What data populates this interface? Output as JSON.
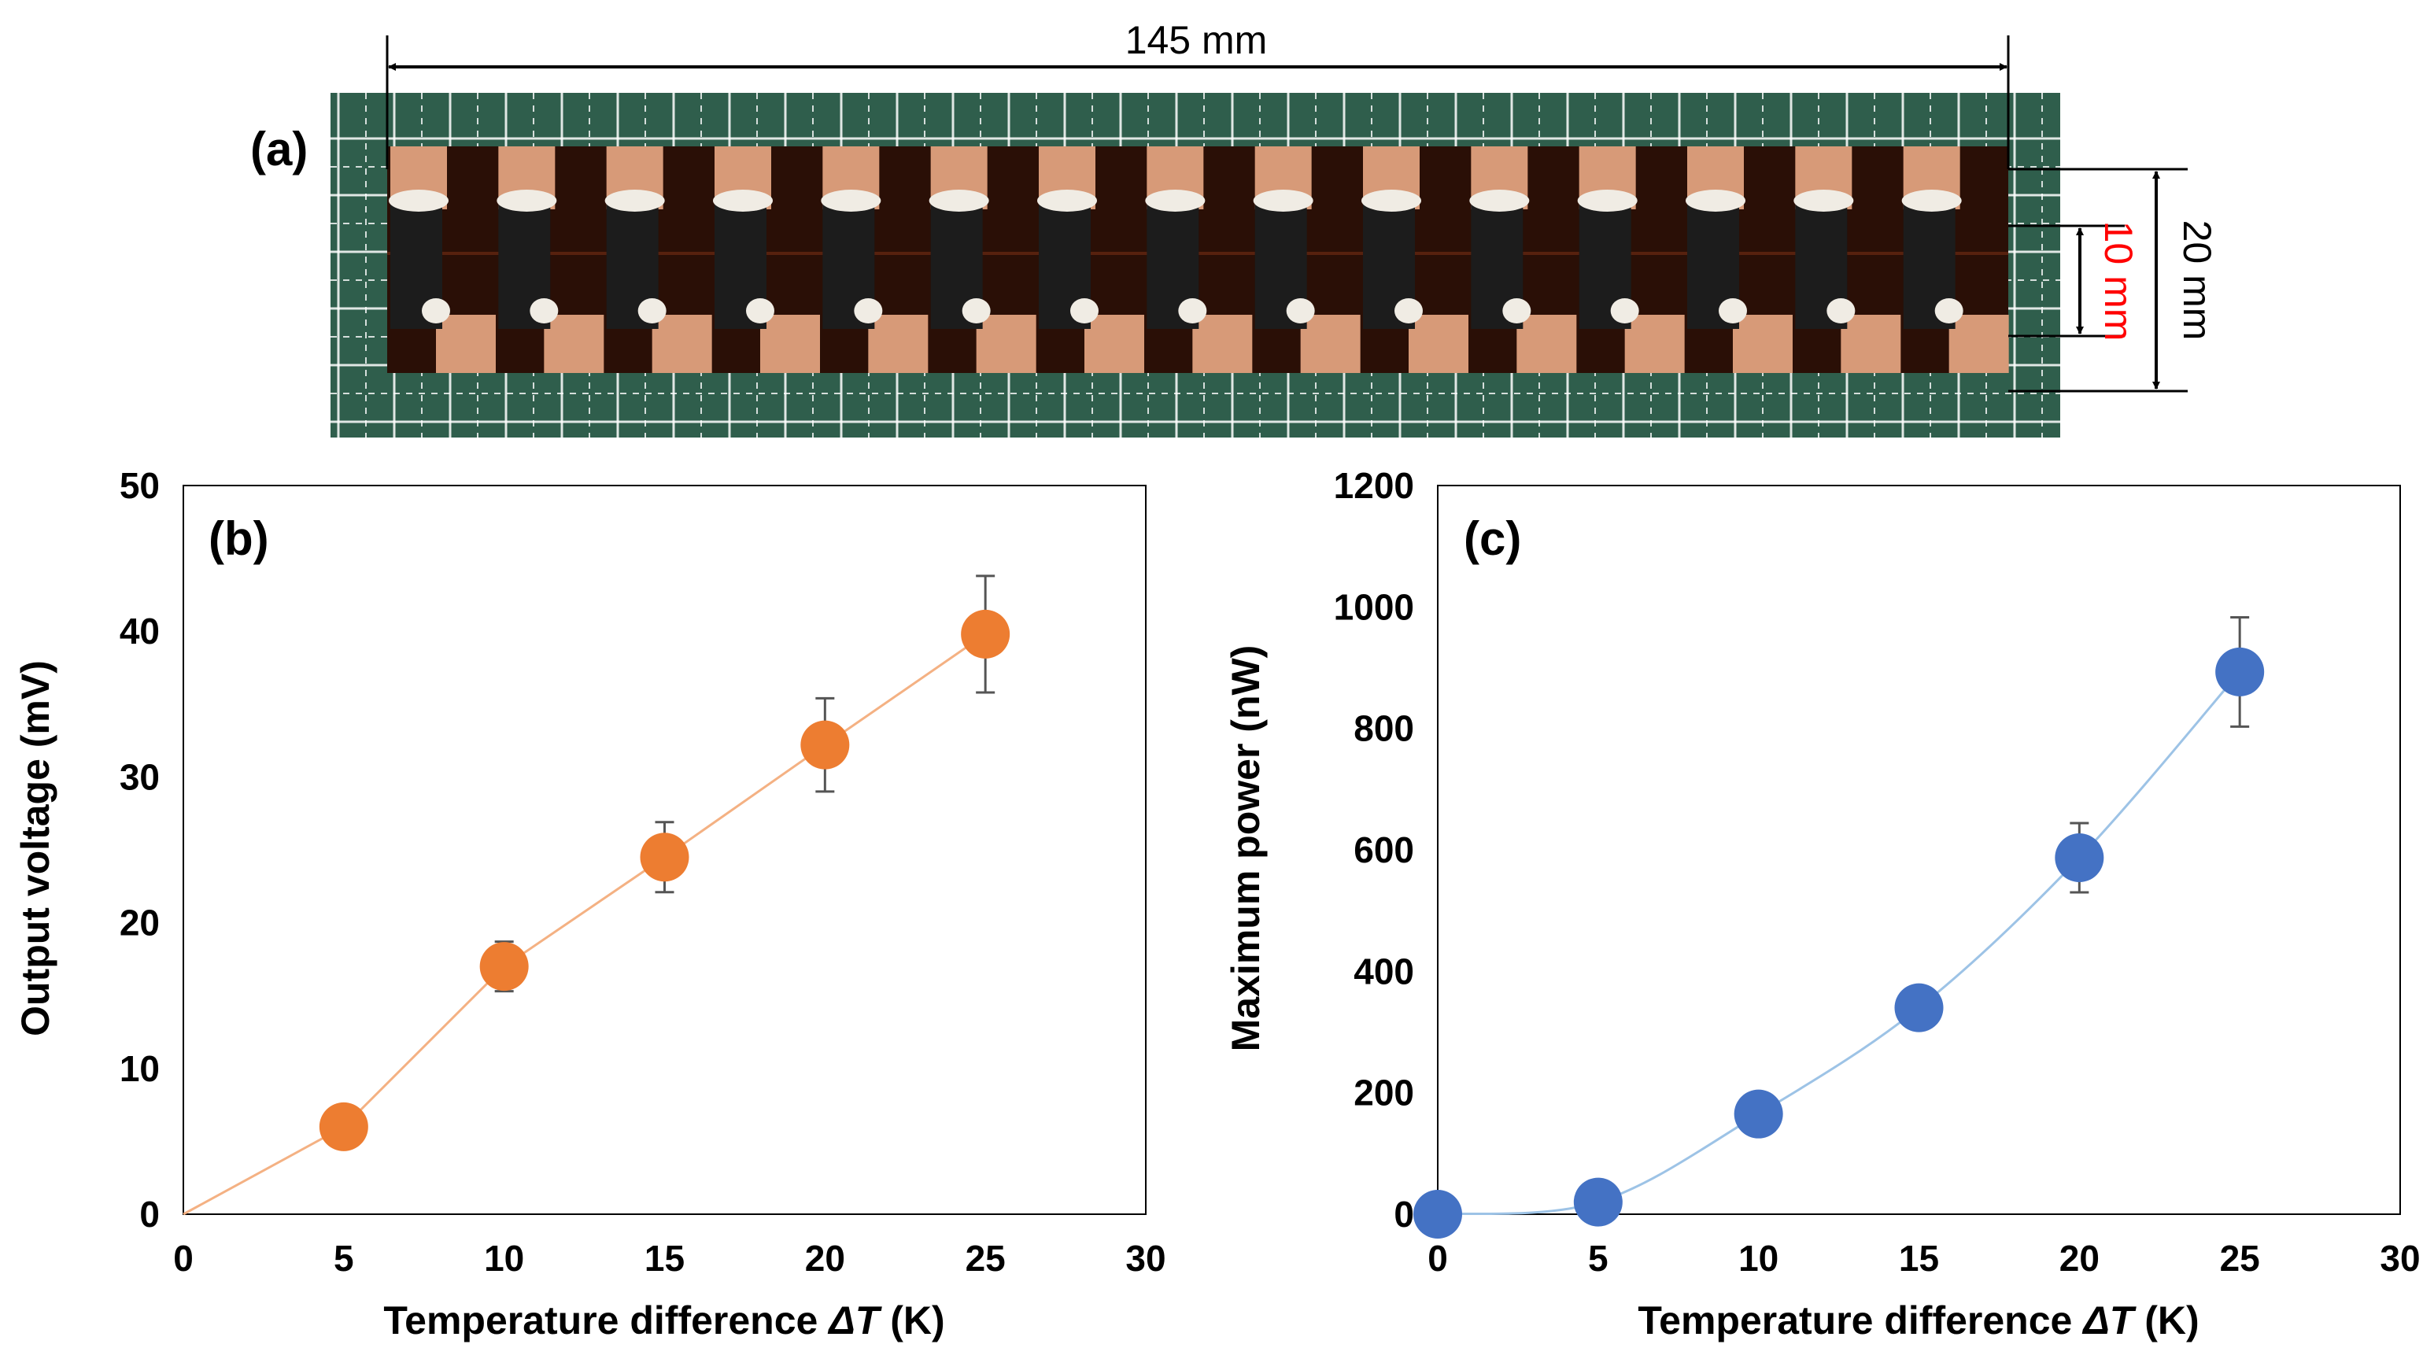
{
  "panel_a": {
    "label": "(a)",
    "length_label": "145 mm",
    "height_label": "20 mm",
    "inner_height_label": "10 mm",
    "colors": {
      "board": "#2f5e4c",
      "grid": "#ffffff",
      "copper": "#d79a78",
      "dark_gap": "#2a0f06",
      "black_leg": "#1c1c1c",
      "paste": "#f0ece4",
      "dim_red": "#ff0000"
    },
    "pairs": 15
  },
  "chart_data": [
    {
      "id": "b",
      "type": "line",
      "panel_label": "(b)",
      "xlabel_prefix": "Temperature difference ",
      "xlabel_symbol": "ΔT",
      "xlabel_suffix": " (K)",
      "ylabel": "Output voltage (mV)",
      "xlim": [
        0,
        30
      ],
      "ylim": [
        0,
        50
      ],
      "xticks": [
        0,
        5,
        10,
        15,
        20,
        25,
        30
      ],
      "yticks": [
        0,
        10,
        20,
        30,
        40,
        50
      ],
      "series": [
        {
          "name": "Output voltage",
          "color": "#ed7d31",
          "line_color": "#f4b183",
          "x": [
            5,
            10,
            15,
            20,
            25
          ],
          "y": [
            6,
            17,
            24.5,
            32.2,
            39.8
          ],
          "err": [
            0,
            1.7,
            2.4,
            3.2,
            4.0
          ],
          "line_start": [
            0,
            0
          ]
        }
      ]
    },
    {
      "id": "c",
      "type": "line",
      "panel_label": "(c)",
      "xlabel_prefix": "Temperature difference ",
      "xlabel_symbol": "ΔT",
      "xlabel_suffix": " (K)",
      "ylabel": "Maximum power (nW)",
      "xlim": [
        0,
        30
      ],
      "ylim": [
        0,
        1200
      ],
      "xticks": [
        0,
        5,
        10,
        15,
        20,
        25,
        30
      ],
      "yticks": [
        0,
        200,
        400,
        600,
        800,
        1000,
        1200
      ],
      "series": [
        {
          "name": "Maximum power",
          "color": "#4472c4",
          "line_color": "#9dc3e6",
          "x": [
            0,
            5,
            10,
            15,
            20,
            25
          ],
          "y": [
            0,
            20,
            165,
            340,
            587,
            893
          ],
          "err": [
            0,
            0,
            0,
            0,
            57,
            90
          ],
          "line_start": null
        }
      ]
    }
  ]
}
